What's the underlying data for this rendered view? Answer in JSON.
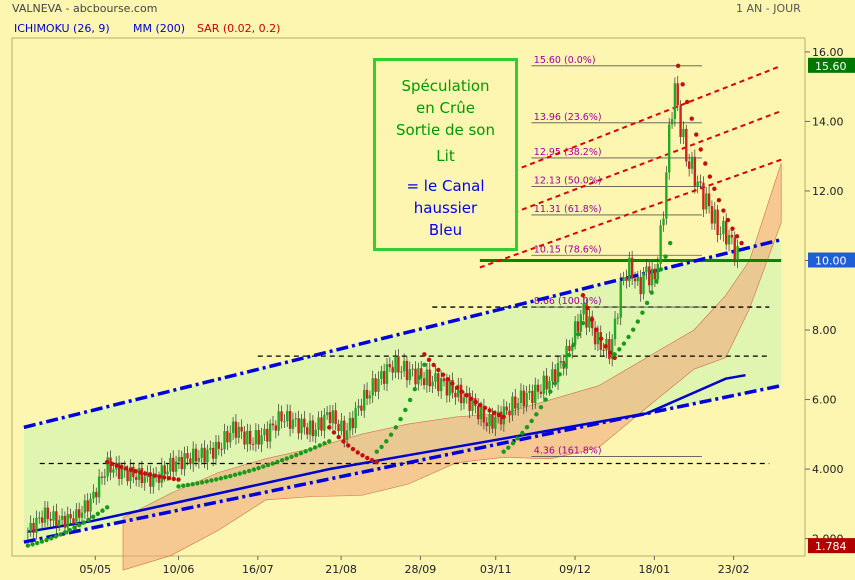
{
  "header": {
    "title": "VALNEVA - abcbourse.com",
    "period": "1 AN - JOUR",
    "indicators": [
      {
        "label": "ICHIMOKU (26, 9)",
        "color": "#0000cc"
      },
      {
        "label": "MM (200)",
        "color": "#0000cc"
      },
      {
        "label": "SAR (0.02, 0.2)",
        "color": "#cc0000"
      }
    ]
  },
  "annotation": {
    "lines": [
      "Spéculation",
      "en Crûe",
      "Sortie de son",
      "Lit"
    ],
    "lines2": [
      "= le Canal haussier",
      "Bleu"
    ],
    "color_main": "#009900",
    "color_channel": "#0000ee"
  },
  "chart_data": {
    "type": "candlestick",
    "ylim": [
      1.5,
      16.4
    ],
    "y_ticks": [
      "16.00",
      "14.00",
      "12.00",
      "10.00",
      "8.00",
      "6.00",
      "4.000",
      "2.000"
    ],
    "x_ticks": [
      "05/05",
      "10/06",
      "16/07",
      "21/08",
      "28/09",
      "03/11",
      "09/12",
      "18/01",
      "23/02"
    ],
    "price_badges": [
      {
        "label": "15.60",
        "value": 15.6,
        "color": "#007700"
      },
      {
        "label": "10.00",
        "value": 10.0,
        "color": "#1f5fd6"
      },
      {
        "label": "1.784",
        "value": 1.784,
        "color": "#b00000"
      }
    ],
    "fibonacci": [
      {
        "label": "15.60  (0.0%)",
        "value": 15.6
      },
      {
        "label": "13.96  (23.6%)",
        "value": 13.96
      },
      {
        "label": "12.95  (38.2%)",
        "value": 12.95
      },
      {
        "label": "12.13  (50.0%)",
        "value": 12.13
      },
      {
        "label": "11.31  (61.8%)",
        "value": 11.31
      },
      {
        "label": "10.15  (78.6%)",
        "value": 10.15
      },
      {
        "label": "8.66  (100.0%)",
        "value": 8.66
      },
      {
        "label": "4.36  (161.8%)",
        "value": 4.36
      }
    ],
    "horizontal_levels": [
      8.66,
      7.25,
      4.16
    ],
    "support_level": 10.0,
    "price_path": [
      [
        0.02,
        2.2
      ],
      [
        0.04,
        2.7
      ],
      [
        0.06,
        2.5
      ],
      [
        0.08,
        2.6
      ],
      [
        0.1,
        3.1
      ],
      [
        0.12,
        4.1
      ],
      [
        0.14,
        3.9
      ],
      [
        0.16,
        3.8
      ],
      [
        0.18,
        3.7
      ],
      [
        0.2,
        4.1
      ],
      [
        0.22,
        4.3
      ],
      [
        0.24,
        4.4
      ],
      [
        0.26,
        4.6
      ],
      [
        0.28,
        5.2
      ],
      [
        0.3,
        4.8
      ],
      [
        0.32,
        5.0
      ],
      [
        0.34,
        5.5
      ],
      [
        0.36,
        5.3
      ],
      [
        0.38,
        5.1
      ],
      [
        0.4,
        5.6
      ],
      [
        0.42,
        5.0
      ],
      [
        0.44,
        5.9
      ],
      [
        0.46,
        6.5
      ],
      [
        0.48,
        7.0
      ],
      [
        0.5,
        6.8
      ],
      [
        0.52,
        6.6
      ],
      [
        0.54,
        6.5
      ],
      [
        0.56,
        6.2
      ],
      [
        0.58,
        5.9
      ],
      [
        0.6,
        5.3
      ],
      [
        0.62,
        5.6
      ],
      [
        0.64,
        6.0
      ],
      [
        0.66,
        6.2
      ],
      [
        0.68,
        6.6
      ],
      [
        0.7,
        7.3
      ],
      [
        0.72,
        8.6
      ],
      [
        0.74,
        7.6
      ],
      [
        0.755,
        7.4
      ],
      [
        0.77,
        9.5
      ],
      [
        0.78,
        9.8
      ],
      [
        0.79,
        9.2
      ],
      [
        0.8,
        9.7
      ],
      [
        0.81,
        9.4
      ],
      [
        0.82,
        11.0
      ],
      [
        0.83,
        14.0
      ],
      [
        0.835,
        15.0
      ],
      [
        0.84,
        14.3
      ],
      [
        0.85,
        13.0
      ],
      [
        0.86,
        12.5
      ],
      [
        0.87,
        11.9
      ],
      [
        0.88,
        11.5
      ],
      [
        0.89,
        10.9
      ],
      [
        0.9,
        10.8
      ],
      [
        0.91,
        10.4
      ],
      [
        0.915,
        10.15
      ]
    ],
    "ma200_path": [
      [
        0.02,
        2.2
      ],
      [
        0.1,
        2.5
      ],
      [
        0.2,
        3.0
      ],
      [
        0.3,
        3.5
      ],
      [
        0.4,
        4.0
      ],
      [
        0.5,
        4.4
      ],
      [
        0.6,
        4.8
      ],
      [
        0.7,
        5.2
      ],
      [
        0.8,
        5.6
      ],
      [
        0.86,
        6.2
      ],
      [
        0.9,
        6.6
      ],
      [
        0.925,
        6.7
      ]
    ],
    "cloud_path": [
      [
        0.14,
        2.6
      ],
      [
        0.2,
        3.3
      ],
      [
        0.26,
        3.9
      ],
      [
        0.32,
        4.3
      ],
      [
        0.38,
        4.6
      ],
      [
        0.44,
        5.0
      ],
      [
        0.5,
        5.3
      ],
      [
        0.56,
        5.5
      ],
      [
        0.62,
        5.6
      ],
      [
        0.68,
        6.0
      ],
      [
        0.74,
        6.4
      ],
      [
        0.8,
        7.2
      ],
      [
        0.86,
        8.0
      ],
      [
        0.9,
        9.0
      ],
      [
        0.93,
        10.0
      ],
      [
        0.97,
        12.8
      ]
    ],
    "sar_segments": [
      {
        "from": [
          0.02,
          1.8
        ],
        "to": [
          0.12,
          2.9
        ]
      },
      {
        "from": [
          0.12,
          4.2
        ],
        "to": [
          0.21,
          3.7
        ]
      },
      {
        "from": [
          0.21,
          3.5
        ],
        "to": [
          0.4,
          4.8
        ]
      },
      {
        "from": [
          0.4,
          5.2
        ],
        "to": [
          0.46,
          4.2
        ]
      },
      {
        "from": [
          0.46,
          4.5
        ],
        "to": [
          0.52,
          7.0
        ]
      },
      {
        "from": [
          0.52,
          7.3
        ],
        "to": [
          0.62,
          5.5
        ]
      },
      {
        "from": [
          0.62,
          4.5
        ],
        "to": [
          0.72,
          8.2
        ]
      },
      {
        "from": [
          0.72,
          9.0
        ],
        "to": [
          0.76,
          7.2
        ]
      },
      {
        "from": [
          0.76,
          7.3
        ],
        "to": [
          0.83,
          10.5
        ]
      },
      {
        "from": [
          0.84,
          15.6
        ],
        "to": [
          0.92,
          10.5
        ]
      }
    ],
    "blue_channel": {
      "upper": [
        [
          0.015,
          5.2
        ],
        [
          0.97,
          10.6
        ]
      ],
      "lower": [
        [
          0.015,
          1.9
        ],
        [
          0.97,
          6.4
        ]
      ]
    },
    "red_channel": [
      {
        "from": [
          0.59,
          9.8
        ],
        "to": [
          0.97,
          12.9
        ]
      },
      {
        "from": [
          0.59,
          11.0
        ],
        "to": [
          0.97,
          14.3
        ]
      },
      {
        "from": [
          0.59,
          12.2
        ],
        "to": [
          0.97,
          15.6
        ]
      }
    ],
    "series": [
      {
        "name": "ICHIMOKU (26, 9)"
      },
      {
        "name": "MM (200)"
      },
      {
        "name": "SAR (0.02, 0.2)"
      }
    ]
  }
}
